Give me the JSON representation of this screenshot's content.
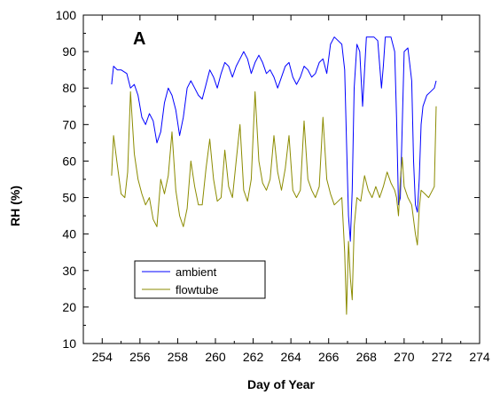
{
  "chart_data": {
    "type": "line",
    "panel_label": "A",
    "xlabel": "Day of Year",
    "ylabel": "RH (%)",
    "xlim": [
      253,
      274
    ],
    "ylim": [
      10,
      100
    ],
    "xticks": [
      254,
      256,
      258,
      260,
      262,
      264,
      266,
      268,
      270,
      272,
      274
    ],
    "yticks": [
      10,
      20,
      30,
      40,
      50,
      60,
      70,
      80,
      90,
      100
    ],
    "legend_position": "lower-left",
    "grid": false,
    "series": [
      {
        "name": "ambient",
        "color": "#0000ff",
        "x": [
          254.5,
          254.6,
          254.8,
          255.0,
          255.3,
          255.5,
          255.7,
          255.9,
          256.1,
          256.3,
          256.5,
          256.7,
          256.9,
          257.1,
          257.3,
          257.5,
          257.7,
          257.9,
          258.1,
          258.3,
          258.5,
          258.7,
          258.9,
          259.1,
          259.3,
          259.5,
          259.7,
          259.9,
          260.1,
          260.3,
          260.5,
          260.7,
          260.9,
          261.1,
          261.3,
          261.5,
          261.7,
          261.9,
          262.1,
          262.3,
          262.5,
          262.7,
          262.9,
          263.1,
          263.3,
          263.5,
          263.7,
          263.9,
          264.1,
          264.3,
          264.5,
          264.7,
          264.9,
          265.1,
          265.3,
          265.5,
          265.7,
          265.9,
          266.1,
          266.3,
          266.5,
          266.7,
          266.85,
          266.95,
          267.05,
          267.15,
          267.25,
          267.35,
          267.5,
          267.65,
          267.8,
          268.0,
          268.2,
          268.4,
          268.6,
          268.8,
          268.9,
          269.0,
          269.1,
          269.3,
          269.5,
          269.6,
          269.7,
          269.8,
          270.0,
          270.2,
          270.4,
          270.5,
          270.6,
          270.7,
          270.8,
          270.9,
          271.0,
          271.2,
          271.4,
          271.6,
          271.7
        ],
        "y": [
          81,
          86,
          85,
          85,
          84,
          80,
          81,
          78,
          72,
          70,
          73,
          71,
          65,
          68,
          76,
          80,
          78,
          74,
          67,
          72,
          80,
          82,
          80,
          78,
          77,
          81,
          85,
          83,
          80,
          84,
          87,
          86,
          83,
          86,
          88,
          90,
          88,
          84,
          87,
          89,
          87,
          84,
          85,
          83,
          80,
          83,
          86,
          87,
          83,
          81,
          83,
          86,
          85,
          83,
          84,
          87,
          88,
          84,
          92,
          94,
          93,
          92,
          85,
          65,
          45,
          38,
          52,
          80,
          92,
          90,
          75,
          94,
          94,
          94,
          93,
          80,
          86,
          94,
          94,
          94,
          90,
          72,
          48,
          50,
          90,
          91,
          82,
          60,
          48,
          46,
          55,
          70,
          75,
          78,
          79,
          80,
          82
        ]
      },
      {
        "name": "flowtube",
        "color": "#8b8b00",
        "x": [
          254.5,
          254.6,
          254.8,
          255.0,
          255.2,
          255.35,
          255.5,
          255.7,
          255.9,
          256.1,
          256.3,
          256.5,
          256.7,
          256.9,
          257.1,
          257.3,
          257.5,
          257.7,
          257.9,
          258.1,
          258.3,
          258.5,
          258.7,
          258.9,
          259.1,
          259.3,
          259.5,
          259.7,
          259.9,
          260.1,
          260.3,
          260.5,
          260.7,
          260.9,
          261.1,
          261.3,
          261.5,
          261.7,
          261.9,
          262.1,
          262.3,
          262.5,
          262.7,
          262.9,
          263.1,
          263.3,
          263.5,
          263.7,
          263.9,
          264.1,
          264.3,
          264.5,
          264.7,
          264.9,
          265.1,
          265.3,
          265.5,
          265.7,
          265.9,
          266.1,
          266.3,
          266.5,
          266.7,
          266.85,
          266.95,
          267.05,
          267.15,
          267.25,
          267.35,
          267.5,
          267.7,
          267.9,
          268.1,
          268.3,
          268.5,
          268.7,
          268.9,
          269.1,
          269.3,
          269.5,
          269.6,
          269.7,
          269.8,
          269.9,
          270.0,
          270.2,
          270.4,
          270.6,
          270.7,
          270.8,
          270.9,
          271.1,
          271.3,
          271.5,
          271.6,
          271.7
        ],
        "y": [
          56,
          67,
          59,
          51,
          50,
          57,
          79,
          62,
          55,
          51,
          48,
          50,
          44,
          42,
          55,
          51,
          56,
          68,
          52,
          45,
          42,
          47,
          60,
          53,
          48,
          48,
          58,
          66,
          55,
          49,
          50,
          63,
          53,
          50,
          60,
          70,
          52,
          49,
          55,
          79,
          60,
          54,
          52,
          55,
          67,
          57,
          52,
          58,
          67,
          52,
          50,
          52,
          71,
          55,
          52,
          50,
          53,
          72,
          55,
          51,
          48,
          49,
          50,
          35,
          18,
          38,
          28,
          22,
          42,
          50,
          49,
          56,
          52,
          50,
          53,
          50,
          53,
          57,
          54,
          52,
          50,
          45,
          55,
          61,
          53,
          50,
          48,
          40,
          37,
          47,
          52,
          51,
          50,
          52,
          53,
          75
        ]
      }
    ]
  }
}
